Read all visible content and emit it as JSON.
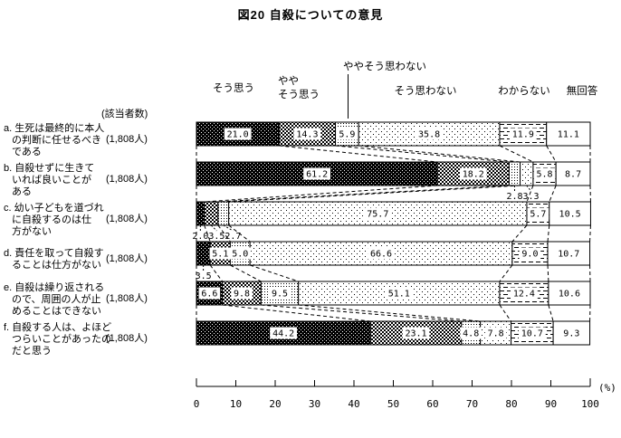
{
  "title": "図20 自殺についての意見",
  "chart_data": {
    "type": "bar",
    "subtype": "horizontal-stacked-percentage",
    "title": "図20 自殺についての意見",
    "unit": "%",
    "respondents_header": "(該当者数)",
    "axis": {
      "min": 0,
      "max": 100,
      "step": 10,
      "tick_labels": [
        "0",
        "10",
        "20",
        "30",
        "40",
        "50",
        "60",
        "70",
        "80",
        "90",
        "100"
      ],
      "unit_label": "(%)"
    },
    "series": [
      {
        "name": "そう思う",
        "header_lines": [
          "そう思う"
        ],
        "pattern": "dark-dots"
      },
      {
        "name": "ややそう思う",
        "header_lines": [
          "やや",
          "そう思う"
        ],
        "pattern": "checker"
      },
      {
        "name": "ややそう思わない",
        "header_lines": [
          "ややそう思わない"
        ],
        "pattern": "dense-dots"
      },
      {
        "name": "そう思わない",
        "header_lines": [
          "そう思わない"
        ],
        "pattern": "sparse-dots"
      },
      {
        "name": "わからない",
        "header_lines": [
          "わからない"
        ],
        "pattern": "dashes"
      },
      {
        "name": "無回答",
        "header_lines": [
          "無回答"
        ],
        "pattern": "white"
      }
    ],
    "categories": [
      {
        "id": "a",
        "label_lines": [
          "a. 生死は最終的に本人",
          "の判断に任せるべき",
          "である"
        ],
        "n": "(1,808人)",
        "values": [
          21.0,
          14.3,
          5.9,
          35.8,
          11.9,
          11.1
        ],
        "label_below": [
          false,
          false,
          false,
          false,
          false,
          false
        ]
      },
      {
        "id": "b",
        "label_lines": [
          "b. 自殺せずに生きて",
          "いれば良いことが",
          "ある"
        ],
        "n": "(1,808人)",
        "values": [
          61.2,
          18.2,
          2.8,
          3.3,
          5.8,
          8.7
        ],
        "label_below": [
          false,
          false,
          true,
          true,
          false,
          false
        ]
      },
      {
        "id": "c",
        "label_lines": [
          "c. 幼い子どもを道づれ",
          "に自殺するのは仕",
          "方がない"
        ],
        "n": "(1,808人)",
        "values": [
          2.0,
          3.5,
          2.7,
          75.7,
          5.7,
          10.5
        ],
        "label_below": [
          true,
          true,
          true,
          false,
          false,
          false
        ]
      },
      {
        "id": "d",
        "label_lines": [
          "d. 責任を取って自殺す",
          "ることは仕方がない"
        ],
        "n": "(1,808人)",
        "values": [
          3.5,
          5.1,
          5.0,
          66.6,
          9.0,
          10.7
        ],
        "label_below": [
          true,
          false,
          false,
          false,
          false,
          false
        ]
      },
      {
        "id": "e",
        "label_lines": [
          "e. 自殺は繰り返される",
          "ので、周囲の人が止",
          "めることはできない"
        ],
        "n": "(1,808人)",
        "values": [
          6.6,
          9.8,
          9.5,
          51.1,
          12.4,
          10.6
        ],
        "label_below": [
          false,
          false,
          false,
          false,
          false,
          false
        ]
      },
      {
        "id": "f",
        "label_lines": [
          "f. 自殺する人は、よほど",
          "つらいことがあったの",
          "だと思う"
        ],
        "n": "(1,808人)",
        "values": [
          44.2,
          23.1,
          4.8,
          7.8,
          10.7,
          9.3
        ],
        "label_below": [
          false,
          false,
          false,
          false,
          false,
          false
        ]
      }
    ]
  }
}
